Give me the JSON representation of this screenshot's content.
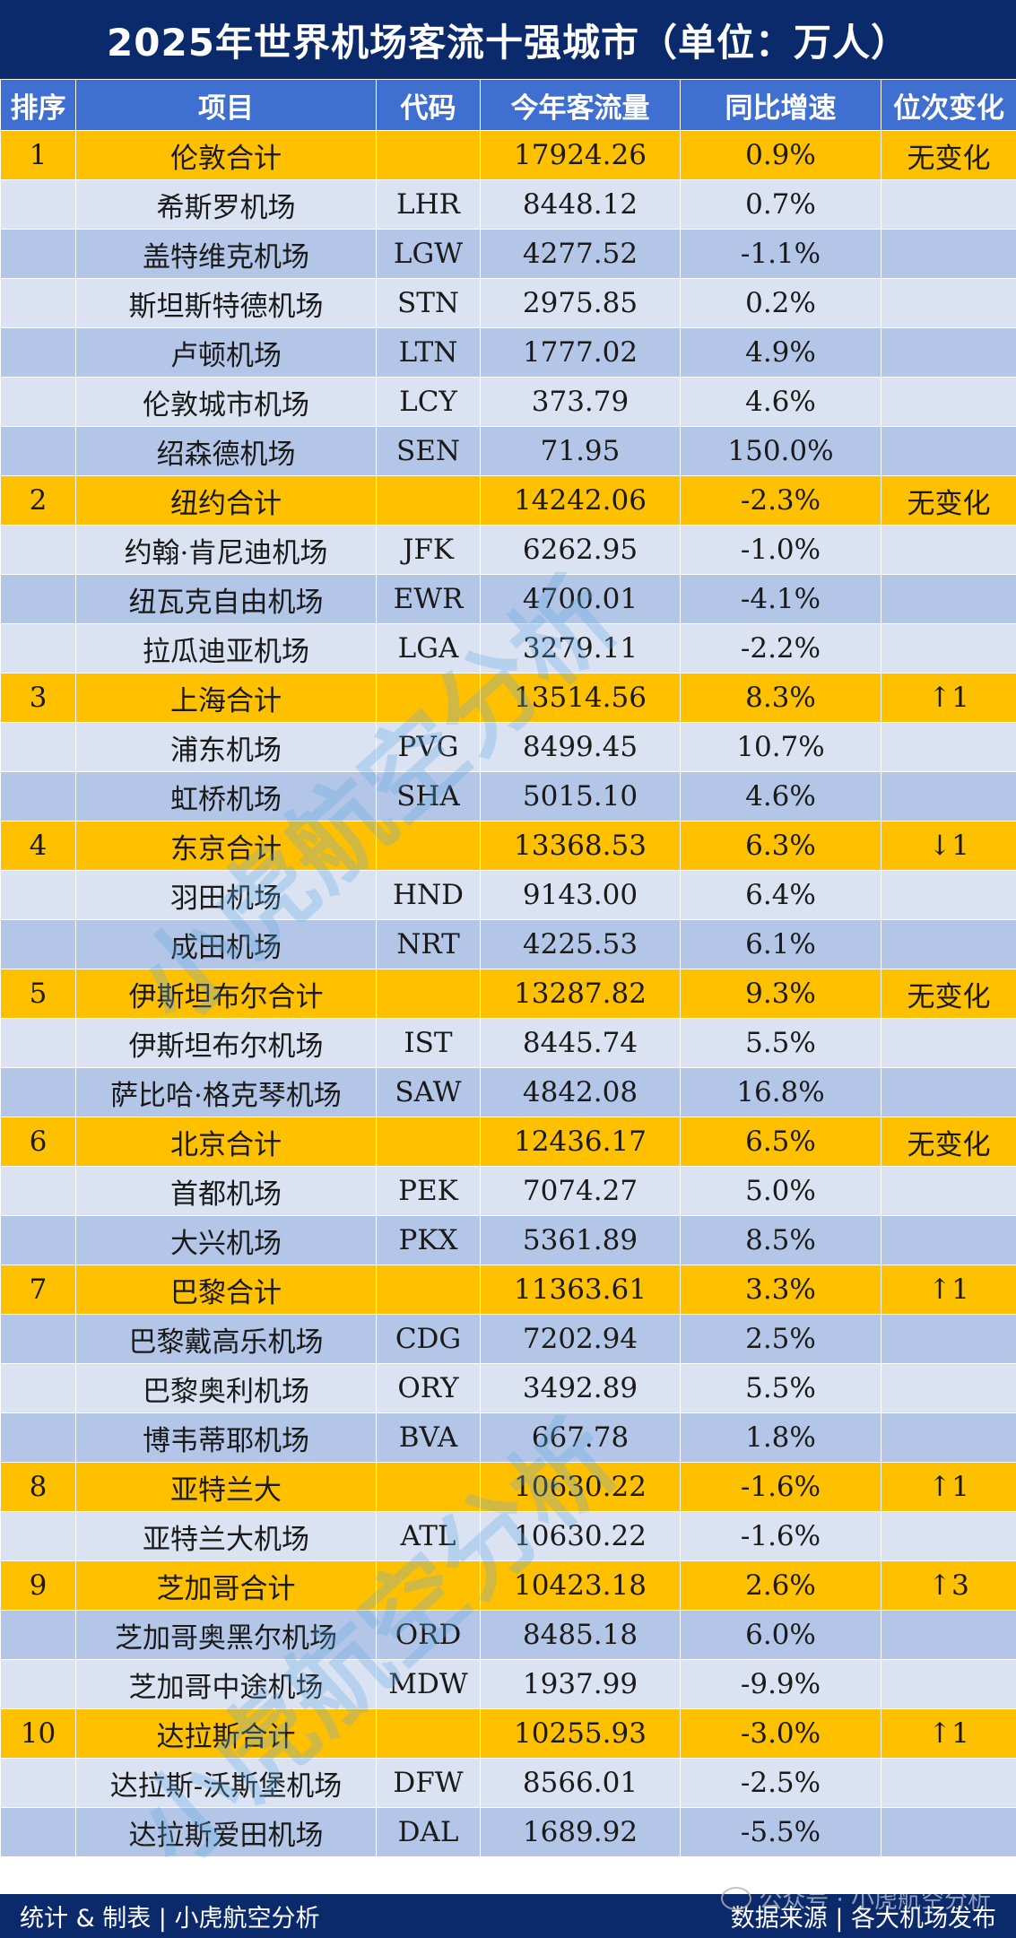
{
  "title": "2025年世界机场客流十强城市（单位：万人）",
  "headers": [
    "排序",
    "项目",
    "代码",
    "今年客流量",
    "同比增速",
    "位次变化"
  ],
  "rows": [
    {
      "rank": "1",
      "name": "伦敦合计",
      "code": "",
      "pax": "17924.26",
      "growth": "0.9%",
      "change": "无变化",
      "type": "total"
    },
    {
      "rank": "",
      "name": "希斯罗机场",
      "code": "LHR",
      "pax": "8448.12",
      "growth": "0.7%",
      "change": "",
      "type": "light"
    },
    {
      "rank": "",
      "name": "盖特维克机场",
      "code": "LGW",
      "pax": "4277.52",
      "growth": "-1.1%",
      "change": "",
      "type": "mid"
    },
    {
      "rank": "",
      "name": "斯坦斯特德机场",
      "code": "STN",
      "pax": "2975.85",
      "growth": "0.2%",
      "change": "",
      "type": "light"
    },
    {
      "rank": "",
      "name": "卢顿机场",
      "code": "LTN",
      "pax": "1777.02",
      "growth": "4.9%",
      "change": "",
      "type": "mid"
    },
    {
      "rank": "",
      "name": "伦敦城市机场",
      "code": "LCY",
      "pax": "373.79",
      "growth": "4.6%",
      "change": "",
      "type": "light"
    },
    {
      "rank": "",
      "name": "绍森德机场",
      "code": "SEN",
      "pax": "71.95",
      "growth": "150.0%",
      "change": "",
      "type": "mid"
    },
    {
      "rank": "2",
      "name": "纽约合计",
      "code": "",
      "pax": "14242.06",
      "growth": "-2.3%",
      "change": "无变化",
      "type": "total"
    },
    {
      "rank": "",
      "name": "约翰·肯尼迪机场",
      "code": "JFK",
      "pax": "6262.95",
      "growth": "-1.0%",
      "change": "",
      "type": "light"
    },
    {
      "rank": "",
      "name": "纽瓦克自由机场",
      "code": "EWR",
      "pax": "4700.01",
      "growth": "-4.1%",
      "change": "",
      "type": "mid"
    },
    {
      "rank": "",
      "name": "拉瓜迪亚机场",
      "code": "LGA",
      "pax": "3279.11",
      "growth": "-2.2%",
      "change": "",
      "type": "light"
    },
    {
      "rank": "3",
      "name": "上海合计",
      "code": "",
      "pax": "13514.56",
      "growth": "8.3%",
      "change": "↑1",
      "type": "total"
    },
    {
      "rank": "",
      "name": "浦东机场",
      "code": "PVG",
      "pax": "8499.45",
      "growth": "10.7%",
      "change": "",
      "type": "light"
    },
    {
      "rank": "",
      "name": "虹桥机场",
      "code": "SHA",
      "pax": "5015.10",
      "growth": "4.6%",
      "change": "",
      "type": "mid"
    },
    {
      "rank": "4",
      "name": "东京合计",
      "code": "",
      "pax": "13368.53",
      "growth": "6.3%",
      "change": "↓1",
      "type": "total"
    },
    {
      "rank": "",
      "name": "羽田机场",
      "code": "HND",
      "pax": "9143.00",
      "growth": "6.4%",
      "change": "",
      "type": "light"
    },
    {
      "rank": "",
      "name": "成田机场",
      "code": "NRT",
      "pax": "4225.53",
      "growth": "6.1%",
      "change": "",
      "type": "mid"
    },
    {
      "rank": "5",
      "name": "伊斯坦布尔合计",
      "code": "",
      "pax": "13287.82",
      "growth": "9.3%",
      "change": "无变化",
      "type": "total"
    },
    {
      "rank": "",
      "name": "伊斯坦布尔机场",
      "code": "IST",
      "pax": "8445.74",
      "growth": "5.5%",
      "change": "",
      "type": "light"
    },
    {
      "rank": "",
      "name": "萨比哈·格克琴机场",
      "code": "SAW",
      "pax": "4842.08",
      "growth": "16.8%",
      "change": "",
      "type": "mid"
    },
    {
      "rank": "6",
      "name": "北京合计",
      "code": "",
      "pax": "12436.17",
      "growth": "6.5%",
      "change": "无变化",
      "type": "total"
    },
    {
      "rank": "",
      "name": "首都机场",
      "code": "PEK",
      "pax": "7074.27",
      "growth": "5.0%",
      "change": "",
      "type": "light"
    },
    {
      "rank": "",
      "name": "大兴机场",
      "code": "PKX",
      "pax": "5361.89",
      "growth": "8.5%",
      "change": "",
      "type": "mid"
    },
    {
      "rank": "7",
      "name": "巴黎合计",
      "code": "",
      "pax": "11363.61",
      "growth": "3.3%",
      "change": "↑1",
      "type": "total"
    },
    {
      "rank": "",
      "name": "巴黎戴高乐机场",
      "code": "CDG",
      "pax": "7202.94",
      "growth": "2.5%",
      "change": "",
      "type": "mid"
    },
    {
      "rank": "",
      "name": "巴黎奥利机场",
      "code": "ORY",
      "pax": "3492.89",
      "growth": "5.5%",
      "change": "",
      "type": "light"
    },
    {
      "rank": "",
      "name": "博韦蒂耶机场",
      "code": "BVA",
      "pax": "667.78",
      "growth": "1.8%",
      "change": "",
      "type": "mid"
    },
    {
      "rank": "8",
      "name": "亚特兰大",
      "code": "",
      "pax": "10630.22",
      "growth": "-1.6%",
      "change": "↑1",
      "type": "total"
    },
    {
      "rank": "",
      "name": "亚特兰大机场",
      "code": "ATL",
      "pax": "10630.22",
      "growth": "-1.6%",
      "change": "",
      "type": "light"
    },
    {
      "rank": "9",
      "name": "芝加哥合计",
      "code": "",
      "pax": "10423.18",
      "growth": "2.6%",
      "change": "↑3",
      "type": "total"
    },
    {
      "rank": "",
      "name": "芝加哥奥黑尔机场",
      "code": "ORD",
      "pax": "8485.18",
      "growth": "6.0%",
      "change": "",
      "type": "mid"
    },
    {
      "rank": "",
      "name": "芝加哥中途机场",
      "code": "MDW",
      "pax": "1937.99",
      "growth": "-9.9%",
      "change": "",
      "type": "light"
    },
    {
      "rank": "10",
      "name": "达拉斯合计",
      "code": "",
      "pax": "10255.93",
      "growth": "-3.0%",
      "change": "↑1",
      "type": "total"
    },
    {
      "rank": "",
      "name": "达拉斯-沃斯堡机场",
      "code": "DFW",
      "pax": "8566.01",
      "growth": "-2.5%",
      "change": "",
      "type": "light"
    },
    {
      "rank": "",
      "name": "达拉斯爱田机场",
      "code": "DAL",
      "pax": "1689.92",
      "growth": "-5.5%",
      "change": "",
      "type": "mid"
    }
  ],
  "footer": {
    "left": "统计 & 制表 | 小虎航空分析",
    "right": "数据来源 | 各大机场发布"
  },
  "watermark": "小虎航空分析",
  "wechat_mark": "公众号 · 小虎航空分析",
  "colors": {
    "title_bg": "#0b2a6b",
    "header_bg": "#3f6fd1",
    "total_row": "#ffc000",
    "light_row": "#dbe3f2",
    "mid_row": "#b4c6e7"
  }
}
